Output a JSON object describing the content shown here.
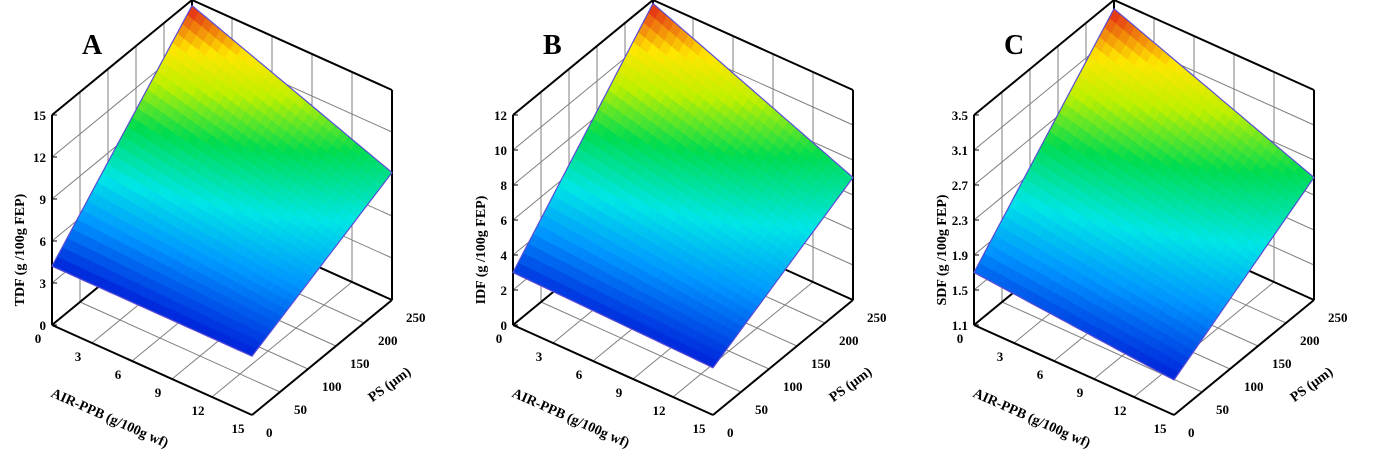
{
  "chart_data": [
    {
      "type": "surface3d",
      "panel_label": "A",
      "zlabel": "TDF (g /100g FEP)",
      "xlabel": "AIR-PPB (g/100g wf)",
      "ylabel": "PS (μm)",
      "x_ticks": [
        "0",
        "3",
        "6",
        "9",
        "12",
        "15"
      ],
      "y_ticks": [
        "0",
        "50",
        "100",
        "150",
        "200",
        "250"
      ],
      "z_ticks": [
        "0",
        "3",
        "6",
        "9",
        "12",
        "15"
      ],
      "xlim": [
        0,
        15
      ],
      "ylim": [
        0,
        250
      ],
      "zlim": [
        0,
        15
      ],
      "corners": {
        "x0y0": 4.2,
        "x15y0": 4.2,
        "x0y250": 9.1,
        "x15y250": 14.6
      }
    },
    {
      "type": "surface3d",
      "panel_label": "B",
      "zlabel": "IDF (g /100g FEP)",
      "xlabel": "AIR-PPB (g/100g wf)",
      "ylabel": "PS (μm)",
      "x_ticks": [
        "0",
        "3",
        "6",
        "9",
        "12",
        "15"
      ],
      "y_ticks": [
        "0",
        "50",
        "100",
        "150",
        "200",
        "250"
      ],
      "z_ticks": [
        "0",
        "2",
        "4",
        "6",
        "8",
        "10",
        "12"
      ],
      "xlim": [
        0,
        15
      ],
      "ylim": [
        0,
        250
      ],
      "zlim": [
        0,
        12
      ],
      "corners": {
        "x0y0": 2.7,
        "x15y0": 3.0,
        "x0y250": 7.0,
        "x15y250": 11.8
      }
    },
    {
      "type": "surface3d",
      "panel_label": "C",
      "zlabel": "SDF (g /100g FEP)",
      "xlabel": "AIR-PPB (g/100g wf)",
      "ylabel": "PS (μm)",
      "x_ticks": [
        "0",
        "3",
        "6",
        "9",
        "12",
        "15"
      ],
      "y_ticks": [
        "0",
        "50",
        "100",
        "150",
        "200",
        "250"
      ],
      "z_ticks": [
        "1.1",
        "1.5",
        "1.9",
        "2.3",
        "2.7",
        "3.1",
        "3.5"
      ],
      "xlim": [
        0,
        15
      ],
      "ylim": [
        0,
        250
      ],
      "zlim": [
        1.1,
        3.5
      ],
      "corners": {
        "x0y0": 1.5,
        "x15y0": 1.7,
        "x0y250": 2.5,
        "x15y250": 3.4
      }
    }
  ]
}
